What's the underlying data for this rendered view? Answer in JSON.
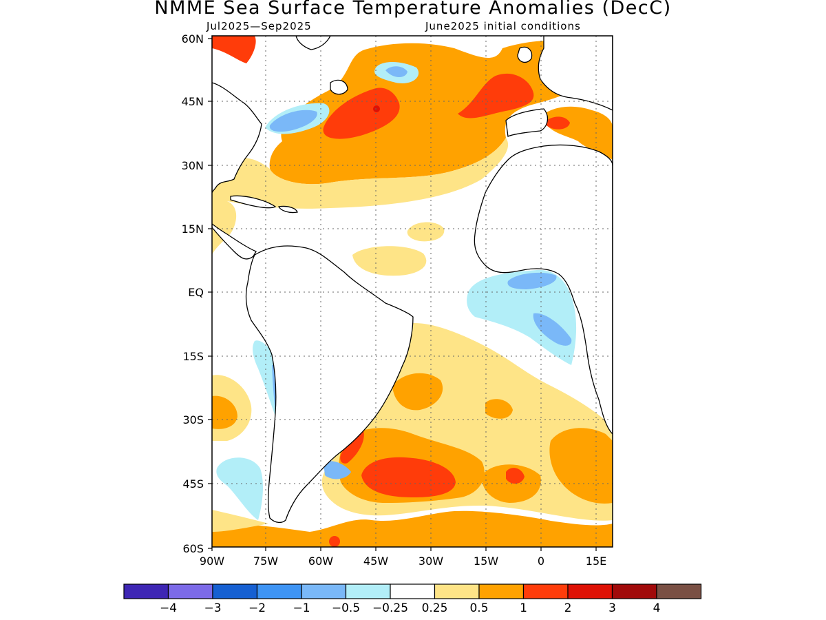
{
  "title": "NMME Sea Surface Temperature Anomalies (DecC)",
  "subtitle_left": "Jul2025—Sep2025",
  "subtitle_right": "June2025 initial conditions",
  "map": {
    "region": "Atlantic Ocean",
    "lon_range": [
      -90,
      19
    ],
    "lat_range": [
      -60,
      60
    ],
    "lat_labels": [
      "60N",
      "45N",
      "30N",
      "15N",
      "EQ",
      "15S",
      "30S",
      "45S",
      "60S"
    ],
    "lon_labels": [
      "90W",
      "75W",
      "60W",
      "45W",
      "30W",
      "15W",
      "0",
      "15E"
    ],
    "gridlines": "dotted",
    "land_color": "#ffffff"
  },
  "legend": {
    "colors": [
      "#3e26b4",
      "#7c6ae8",
      "#1660d2",
      "#3e94f4",
      "#7ab8f8",
      "#b2eef8",
      "#ffffff",
      "#fee487",
      "#ffa200",
      "#ff3c0a",
      "#de1105",
      "#a10a0a",
      "#7a5044"
    ],
    "labels": [
      "−4",
      "−3",
      "−2",
      "−1",
      "−0.5",
      "−0.25",
      "0.25",
      "0.5",
      "1",
      "2",
      "3",
      "4"
    ]
  },
  "anomaly_regions": [
    {
      "name": "North Atlantic warm anomaly",
      "level": "0.5 to 1"
    },
    {
      "name": "North Atlantic core warm anomaly",
      "level": "1 to 2"
    },
    {
      "name": "Gulf Stream cool anomaly",
      "level": "-1 to -0.5"
    },
    {
      "name": "Gulf of Guinea / Benguela cool anomaly",
      "level": "-0.5 to -0.25"
    },
    {
      "name": "South Atlantic warm anomaly",
      "level": "0.5 to 2"
    }
  ]
}
